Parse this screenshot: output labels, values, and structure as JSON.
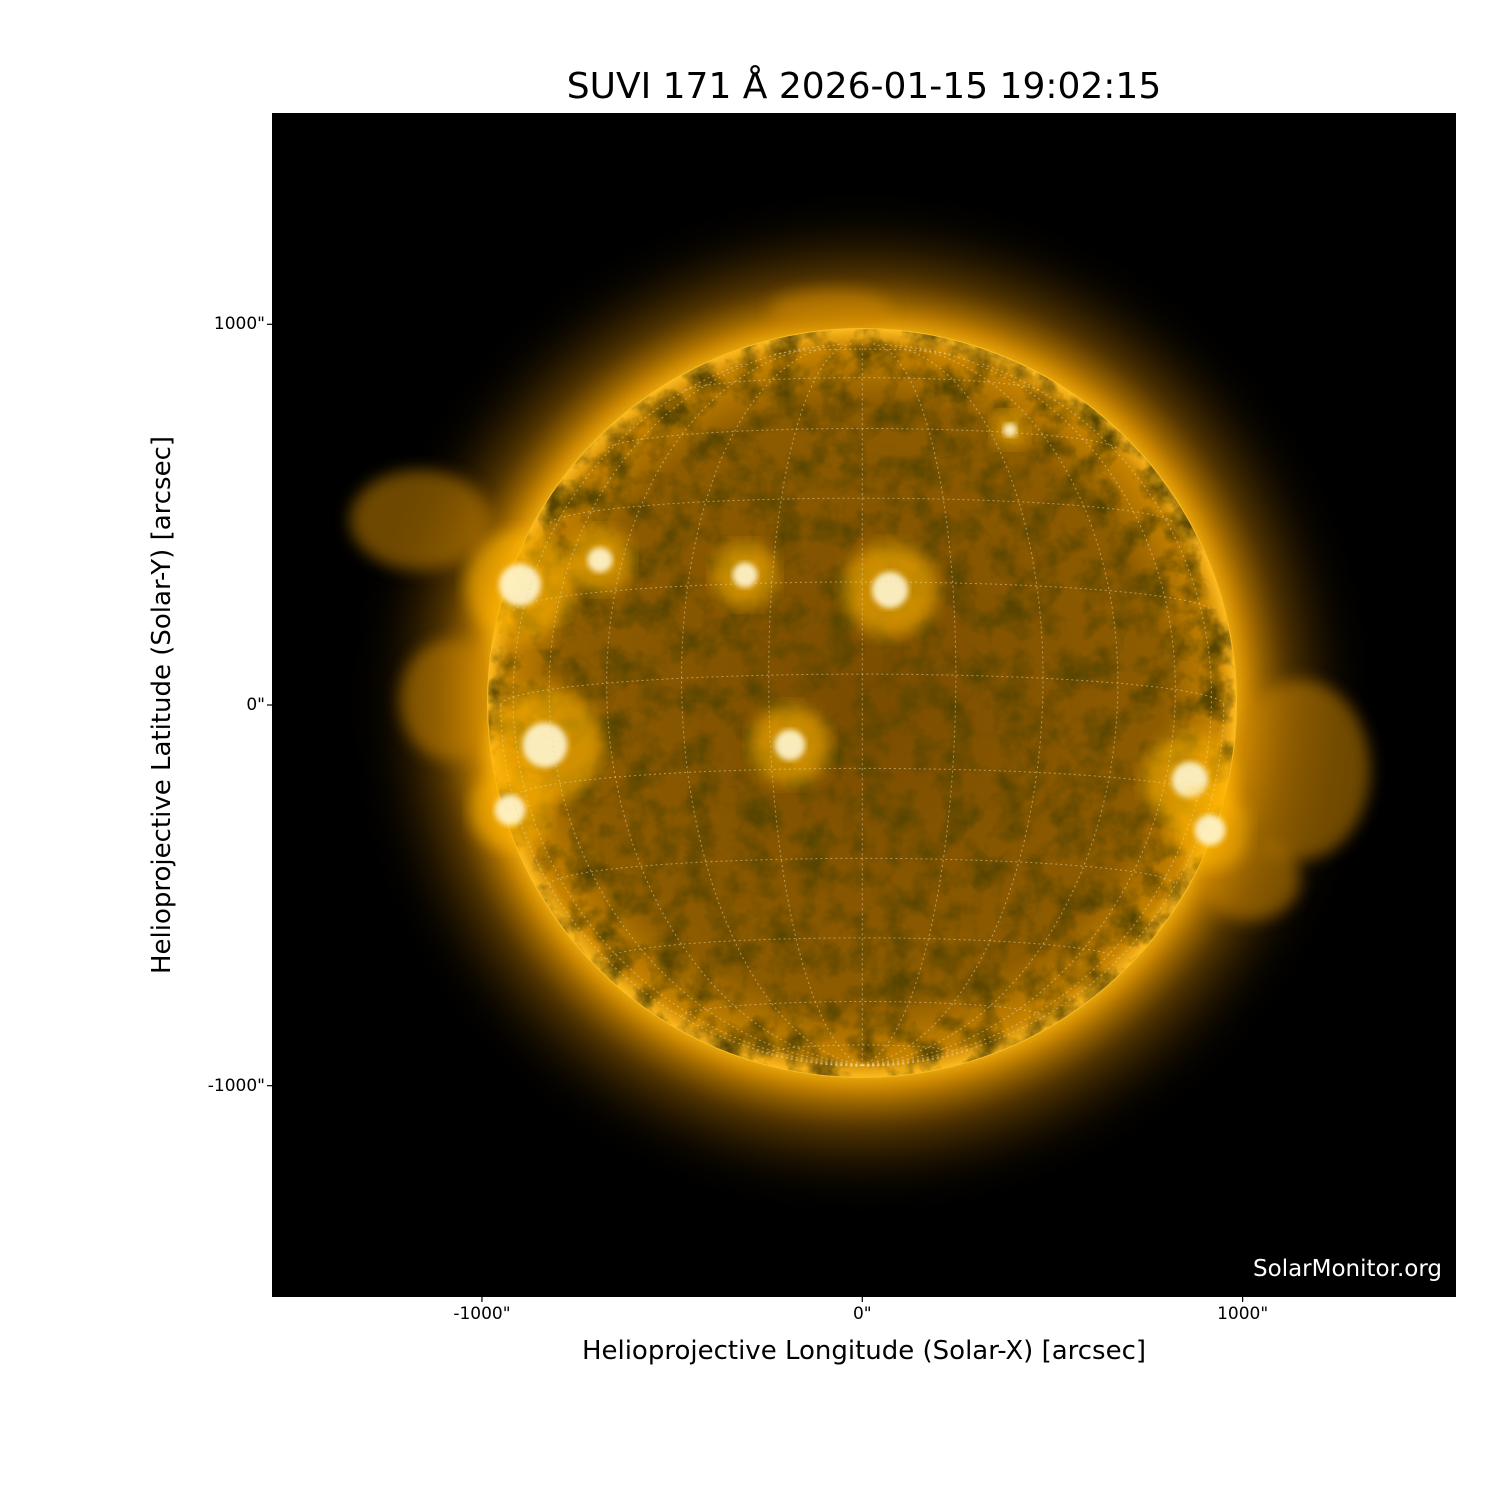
{
  "chart_data": {
    "type": "image",
    "title": "SUVI 171 Å 2026-01-15 19:02:15",
    "xlabel": "Helioprojective Longitude (Solar-X) [arcsec]",
    "ylabel": "Helioprojective Latitude (Solar-Y) [arcsec]",
    "xlim": [
      -1552,
      1561
    ],
    "ylim": [
      -1555,
      1555
    ],
    "xticks": [
      {
        "value": -1000,
        "label": "-1000\""
      },
      {
        "value": 0,
        "label": "0\""
      },
      {
        "value": 1000,
        "label": "1000\""
      }
    ],
    "yticks": [
      {
        "value": 1000,
        "label": "1000\""
      },
      {
        "value": 0,
        "label": "0\""
      },
      {
        "value": -1000,
        "label": "-1000\""
      }
    ],
    "solar_radius_arcsec": 985,
    "grid": "heliographic, dotted, 15° spacing",
    "colormap": "sdoaia171-gold",
    "colors": {
      "background": "#000000",
      "disk": "#8a5a00",
      "limb": "#ffb000",
      "active": "#fff6d0"
    }
  },
  "watermark": "SolarMonitor.org"
}
